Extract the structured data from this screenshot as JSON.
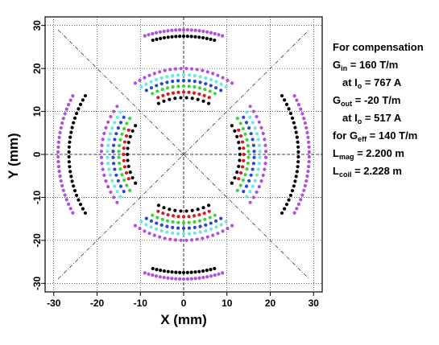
{
  "chart_data": {
    "type": "scatter",
    "title": "",
    "xlabel": "X (mm)",
    "ylabel": "Y (mm)",
    "xlim": [
      -32,
      32
    ],
    "ylim": [
      -32,
      32
    ],
    "xticks": [
      -30,
      -20,
      -10,
      0,
      10,
      20,
      30
    ],
    "yticks": [
      -30,
      -20,
      -10,
      0,
      10,
      20,
      30
    ],
    "grid": true,
    "diagonal_lines": [
      {
        "x": [
          -29,
          29
        ],
        "y": [
          -29,
          29
        ]
      },
      {
        "x": [
          -29,
          29
        ],
        "y": [
          29,
          -29
        ]
      }
    ],
    "colors": {
      "black": "#000000",
      "purple": "#b04ee0",
      "cyan": "#6ae8e8",
      "blue": "#2846d8",
      "green": "#3cd43c",
      "red": "#e01818"
    },
    "arcs": [
      {
        "color": "black",
        "radius": 27.5,
        "half_angle_deg": 15,
        "count": 17,
        "centers_deg": [
          90,
          270
        ]
      },
      {
        "color": "purple",
        "radius": 29.0,
        "half_angle_deg": 18,
        "count": 21,
        "centers_deg": [
          90,
          270
        ]
      },
      {
        "color": "purple",
        "radius": 29.0,
        "half_angle_deg": 28,
        "count": 26,
        "centers_deg": [
          0,
          180
        ]
      },
      {
        "color": "black",
        "radius": 26.5,
        "half_angle_deg": 31,
        "count": 26,
        "centers_deg": [
          0,
          180
        ]
      },
      {
        "color": "black",
        "radius": 13.2,
        "half_angle_deg": 26,
        "count": 10,
        "centers_deg": [
          90,
          270
        ]
      },
      {
        "color": "red",
        "radius": 14.5,
        "half_angle_deg": 24,
        "count": 11,
        "centers_deg": [
          90,
          270
        ]
      },
      {
        "color": "green",
        "radius": 15.9,
        "half_angle_deg": 27,
        "count": 13,
        "centers_deg": [
          90,
          270
        ]
      },
      {
        "color": "blue",
        "radius": 17.2,
        "half_angle_deg": 30,
        "count": 15,
        "centers_deg": [
          90,
          270
        ]
      },
      {
        "color": "cyan",
        "radius": 18.5,
        "half_angle_deg": 32,
        "count": 17,
        "centers_deg": [
          90,
          270
        ]
      },
      {
        "color": "purple",
        "radius": 20.0,
        "half_angle_deg": 34,
        "count": 20,
        "centers_deg": [
          90,
          270
        ]
      },
      {
        "color": "black",
        "radius": 13.0,
        "half_angle_deg": 31,
        "count": 11,
        "centers_deg": [
          0,
          180
        ]
      },
      {
        "color": "red",
        "radius": 13.9,
        "half_angle_deg": 24,
        "count": 9,
        "centers_deg": [
          0,
          180
        ]
      },
      {
        "color": "green",
        "radius": 15.0,
        "half_angle_deg": 34,
        "count": 14,
        "centers_deg": [
          0,
          180
        ]
      },
      {
        "color": "blue",
        "radius": 16.3,
        "half_angle_deg": 32,
        "count": 14,
        "centers_deg": [
          0,
          180
        ]
      },
      {
        "color": "cyan",
        "radius": 17.6,
        "half_angle_deg": 34,
        "count": 16,
        "centers_deg": [
          0,
          180
        ]
      },
      {
        "color": "purple",
        "radius": 19.0,
        "half_angle_deg": 36,
        "count": 18,
        "centers_deg": [
          0,
          180
        ]
      }
    ]
  },
  "annotations": {
    "title": "For compensation",
    "g_in_symbol": "G",
    "g_in_sub": "in",
    "g_in_value": " = 160 T/m",
    "at1_prefix": "at I",
    "at1_sub": "o",
    "at1_value": " = 767 A",
    "g_out_symbol": "G",
    "g_out_sub": "out",
    "g_out_value": " = -20 T/m",
    "at2_prefix": "at I",
    "at2_sub": "o",
    "at2_value": " = 517 A",
    "geff_prefix": "for G",
    "geff_sub": "eff",
    "geff_value": " = 140 T/m",
    "lmag_symbol": "L",
    "lmag_sub": "mag",
    "lmag_value": " = 2.200 m",
    "lcoil_symbol": "L",
    "lcoil_sub": "coil",
    "lcoil_value": " = 2.228 m"
  }
}
